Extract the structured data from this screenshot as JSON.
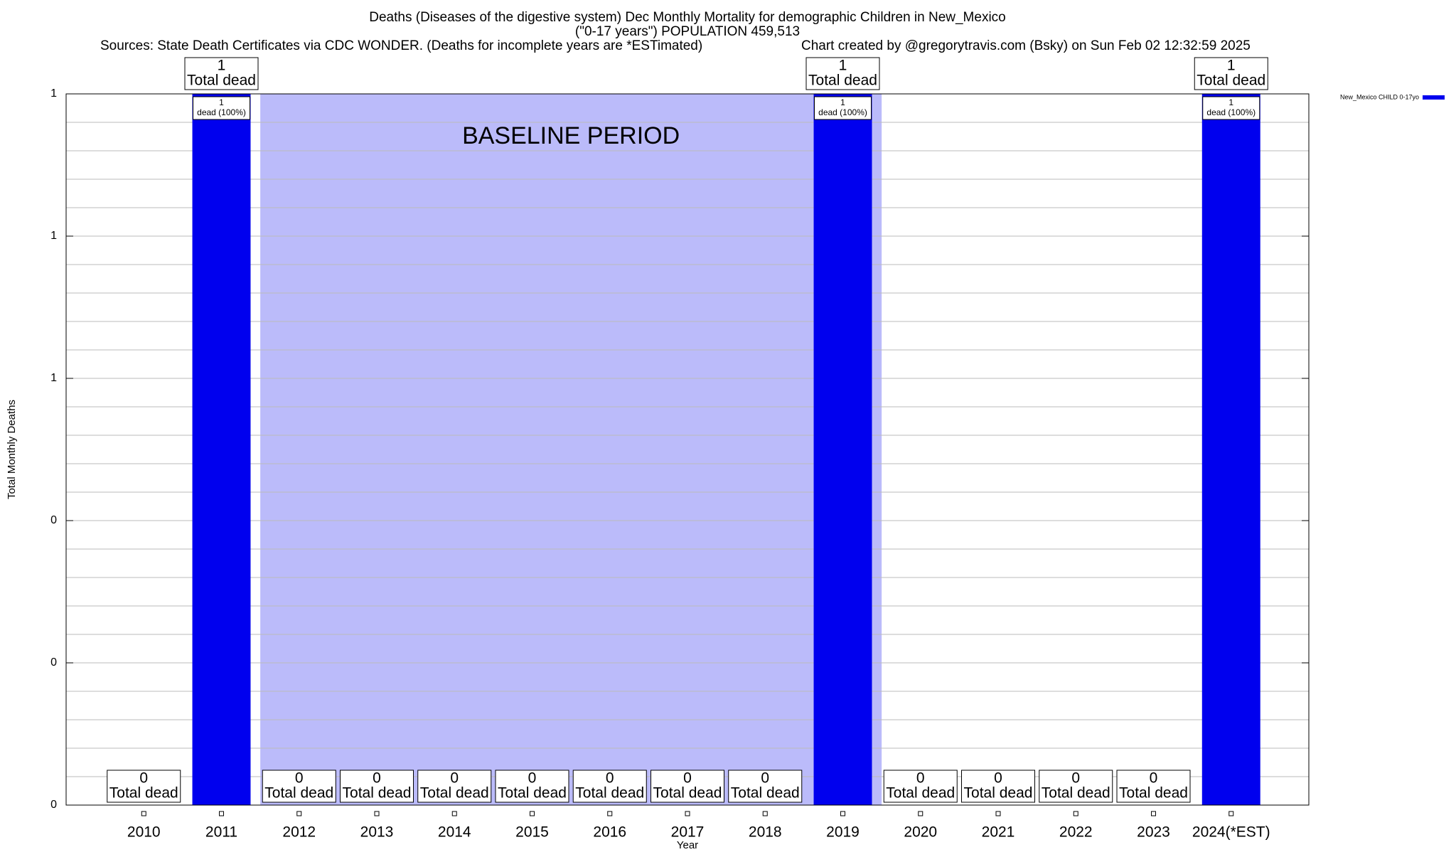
{
  "chart_data": {
    "type": "bar",
    "title": "Deaths (Diseases of the digestive system) Dec Monthly Mortality for demographic Children in New_Mexico",
    "subtitle": "(\"0-17 years\") POPULATION 459,513",
    "source": "Sources: State Death Certificates via CDC WONDER. (Deaths for incomplete years are *ESTimated)",
    "credit": "Chart created by @gregorytravis.com (Bsky) on Sun Feb 02 12:32:59 2025",
    "x_label": "Year",
    "y_label": "Total Monthly Deaths",
    "categories": [
      "2010",
      "2011",
      "2012",
      "2013",
      "2014",
      "2015",
      "2016",
      "2017",
      "2018",
      "2019",
      "2020",
      "2021",
      "2022",
      "2023",
      "2024(*EST)"
    ],
    "series": [
      {
        "name": "New_Mexico CHILD 0-17yo",
        "color": "#0000ee",
        "values": [
          0,
          1,
          0,
          0,
          0,
          0,
          0,
          0,
          0,
          1,
          0,
          0,
          0,
          0,
          1
        ]
      }
    ],
    "total_label": "Total dead",
    "inner_labels": [
      null,
      "dead (100%)",
      null,
      null,
      null,
      null,
      null,
      null,
      null,
      "dead (100%)",
      null,
      null,
      null,
      null,
      "dead (100%)"
    ],
    "baseline": {
      "label": "BASELINE PERIOD",
      "from": "2012",
      "to": "2019",
      "color": "#bbbbfa"
    },
    "ylim": [
      0,
      1
    ],
    "yticks": [
      0,
      {
        "value": 0.2,
        "label": "0"
      },
      {
        "value": 0.4,
        "label": "0"
      },
      {
        "value": 0.6,
        "label": "1"
      },
      {
        "value": 0.8,
        "label": "1"
      },
      1
    ],
    "minor_grid": 5,
    "grid": true,
    "legend": "top-right"
  }
}
